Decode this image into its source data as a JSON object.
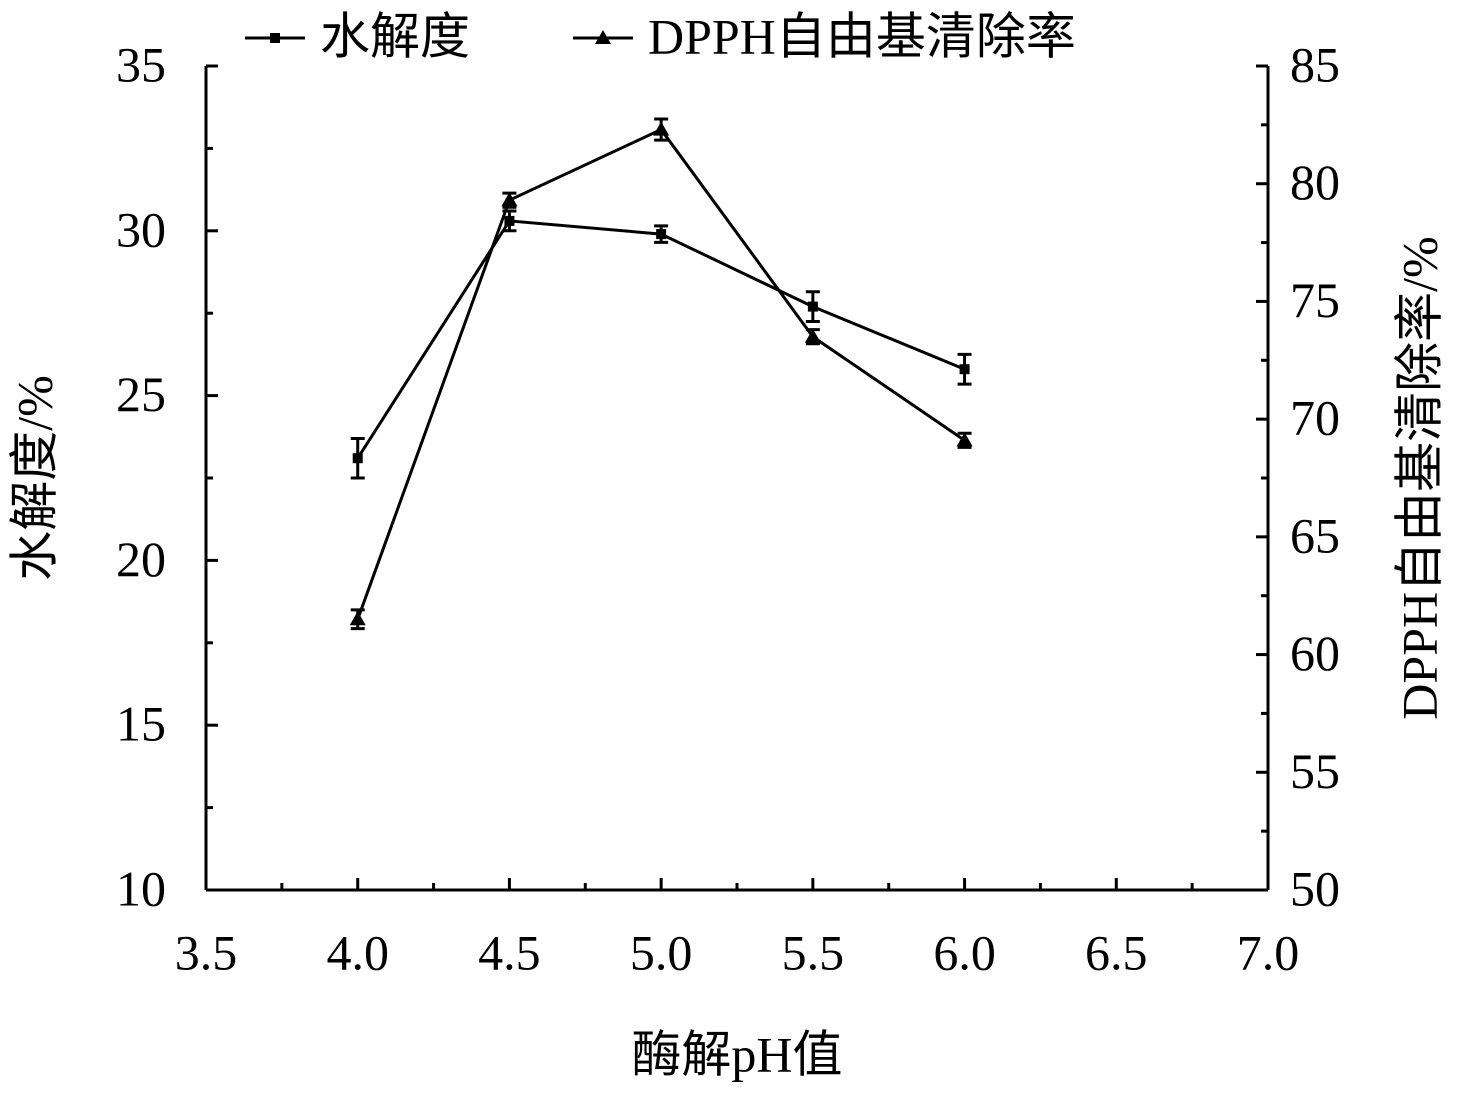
{
  "chart_data": {
    "type": "line",
    "x_label": "酶解pH值",
    "y_label": "水解度/%",
    "y2_label": "DPPH自由基清除率/%",
    "xlim": [
      3.5,
      7.0
    ],
    "xticks": [
      {
        "value": 3.5,
        "label": "3.5"
      },
      {
        "value": 4,
        "label": "4.0"
      },
      {
        "value": 4.5,
        "label": "4.5"
      },
      {
        "value": 5,
        "label": "5.0"
      },
      {
        "value": 5.5,
        "label": "5.5"
      },
      {
        "value": 6,
        "label": "6.0"
      },
      {
        "value": 6.5,
        "label": "6.5"
      },
      {
        "value": 7,
        "label": "7.0"
      }
    ],
    "ylim": [
      10,
      35
    ],
    "yticks": [
      10,
      15,
      20,
      25,
      30,
      35
    ],
    "y2lim": [
      50,
      85
    ],
    "y2ticks": [
      50,
      55,
      60,
      65,
      70,
      75,
      80,
      85
    ],
    "x": [
      4.0,
      4.5,
      5.0,
      5.5,
      6.0
    ],
    "legend": "top",
    "series": [
      {
        "name": "水解度",
        "color": "#000000",
        "marker": "square",
        "axis": "y",
        "values": [
          23.1,
          30.3,
          29.9,
          27.7,
          25.8
        ],
        "errors": [
          0.6,
          0.3,
          0.25,
          0.45,
          0.45
        ]
      },
      {
        "name": "DPPH自由基清除率",
        "color": "#000000",
        "marker": "triangle",
        "axis": "y2",
        "values": [
          61.5,
          79.3,
          82.3,
          73.5,
          69.1
        ],
        "errors": [
          0.4,
          0.3,
          0.45,
          0.3,
          0.3
        ]
      }
    ]
  }
}
